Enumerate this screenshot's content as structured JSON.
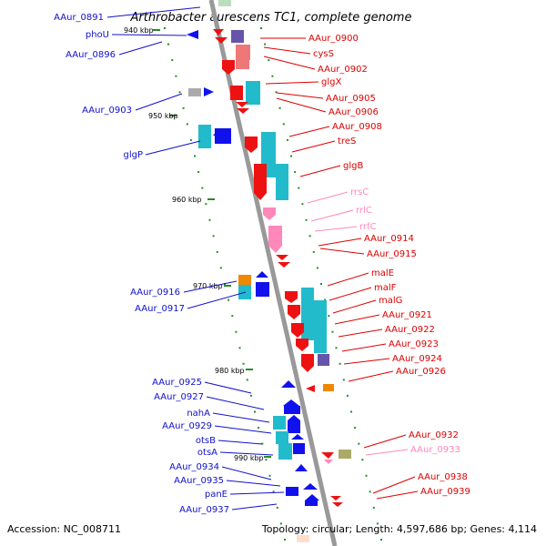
{
  "title": "Arthrobacter aurescens TC1, complete genome",
  "footer": {
    "accession": "Accession: NC_008711",
    "topology": "Topology: circular; Length: 4,597,686 bp; Genes: 4,114"
  },
  "colors": {
    "backbone": "#999999",
    "tick": "#2a8a2a",
    "minus_label": "#1010cc",
    "plus_label": "#dd0000",
    "rrna_label": "#ff88bb",
    "cds_red": "#ee1111",
    "cds_blue": "#1111ee",
    "cds_cyan": "#22bbcc",
    "cds_pink": "#ff88bb",
    "cds_purple": "#6655aa",
    "cds_orange": "#ee8800",
    "cds_olive": "#aaaa66",
    "cds_grey": "#aaaaaa"
  },
  "ticks": [
    "940 kbp",
    "950 kbp",
    "960 kbp",
    "970 kbp",
    "980 kbp",
    "990 kbp"
  ],
  "minus_labels": [
    "AAur_0891",
    "phoU",
    "AAur_0896",
    "AAur_0903",
    "glgP",
    "AAur_0916",
    "AAur_0917",
    "AAur_0925",
    "AAur_0927",
    "nahA",
    "AAur_0929",
    "otsB",
    "otsA",
    "AAur_0934",
    "AAur_0935",
    "panE",
    "AAur_0937"
  ],
  "plus_labels": [
    "AAur_0900",
    "cysS",
    "AAur_0902",
    "glgX",
    "AAur_0905",
    "AAur_0906",
    "AAur_0908",
    "treS",
    "glgB",
    "rrsC",
    "rrlC",
    "rrfC",
    "AAur_0914",
    "AAur_0915",
    "malE",
    "malF",
    "malG",
    "AAur_0921",
    "AAur_0922",
    "AAur_0923",
    "AAur_0924",
    "AAur_0926",
    "AAur_0932",
    "AAur_0933",
    "AAur_0938",
    "AAur_0939"
  ]
}
